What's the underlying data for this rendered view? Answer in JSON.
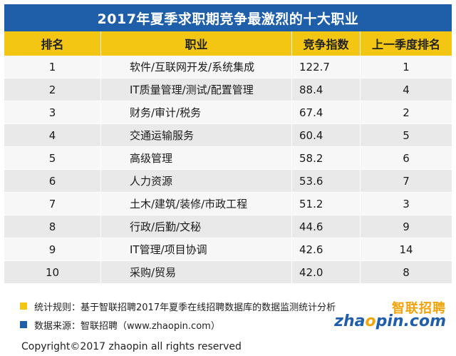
{
  "title": "2017年夏季求职期竞争最激烈的十大职业",
  "headers": [
    "排名",
    "职业",
    "竞争指数",
    "上一季度排名"
  ],
  "rows": [
    {
      "rank": "1",
      "job": "软件/互联网开发/系统集成",
      "index": "122.7",
      "prev": "1"
    },
    {
      "rank": "2",
      "job": "IT质量管理/测试/配置管理",
      "index": "88.4",
      "prev": "4"
    },
    {
      "rank": "3",
      "job": "财务/审计/税务",
      "index": "67.4",
      "prev": "2"
    },
    {
      "rank": "4",
      "job": "交通运输服务",
      "index": "60.4",
      "prev": "5"
    },
    {
      "rank": "5",
      "job": "高级管理",
      "index": "58.2",
      "prev": "6"
    },
    {
      "rank": "6",
      "job": "人力资源",
      "index": "53.6",
      "prev": "7"
    },
    {
      "rank": "7",
      "job": "土木/建筑/装修/市政工程",
      "index": "51.2",
      "prev": "3"
    },
    {
      "rank": "8",
      "job": "行政/后勤/文秘",
      "index": "44.6",
      "prev": "9"
    },
    {
      "rank": "9",
      "job": "IT管理/项目协调",
      "index": "42.6",
      "prev": "14"
    },
    {
      "rank": "10",
      "job": "采购/贸易",
      "index": "42.0",
      "prev": "8"
    }
  ],
  "notes": {
    "rule": "统计规则：基于智联招聘2017年夏季在线招聘数据库的数据监测统计分析",
    "source": "数据来源：智联招聘（www.zhaopin.com）"
  },
  "logo": {
    "cn": "智联招聘",
    "en_pre": "zha",
    "en_o": "o",
    "en_post": "pin.com"
  },
  "copyright": "Copyright©2017 zhaopin all rights reserved",
  "colors": {
    "title_bg": "#1f5fa9",
    "header_bg": "#f3c614",
    "row_even": "#e9e9e9",
    "row_odd": "#f7f7f7"
  }
}
